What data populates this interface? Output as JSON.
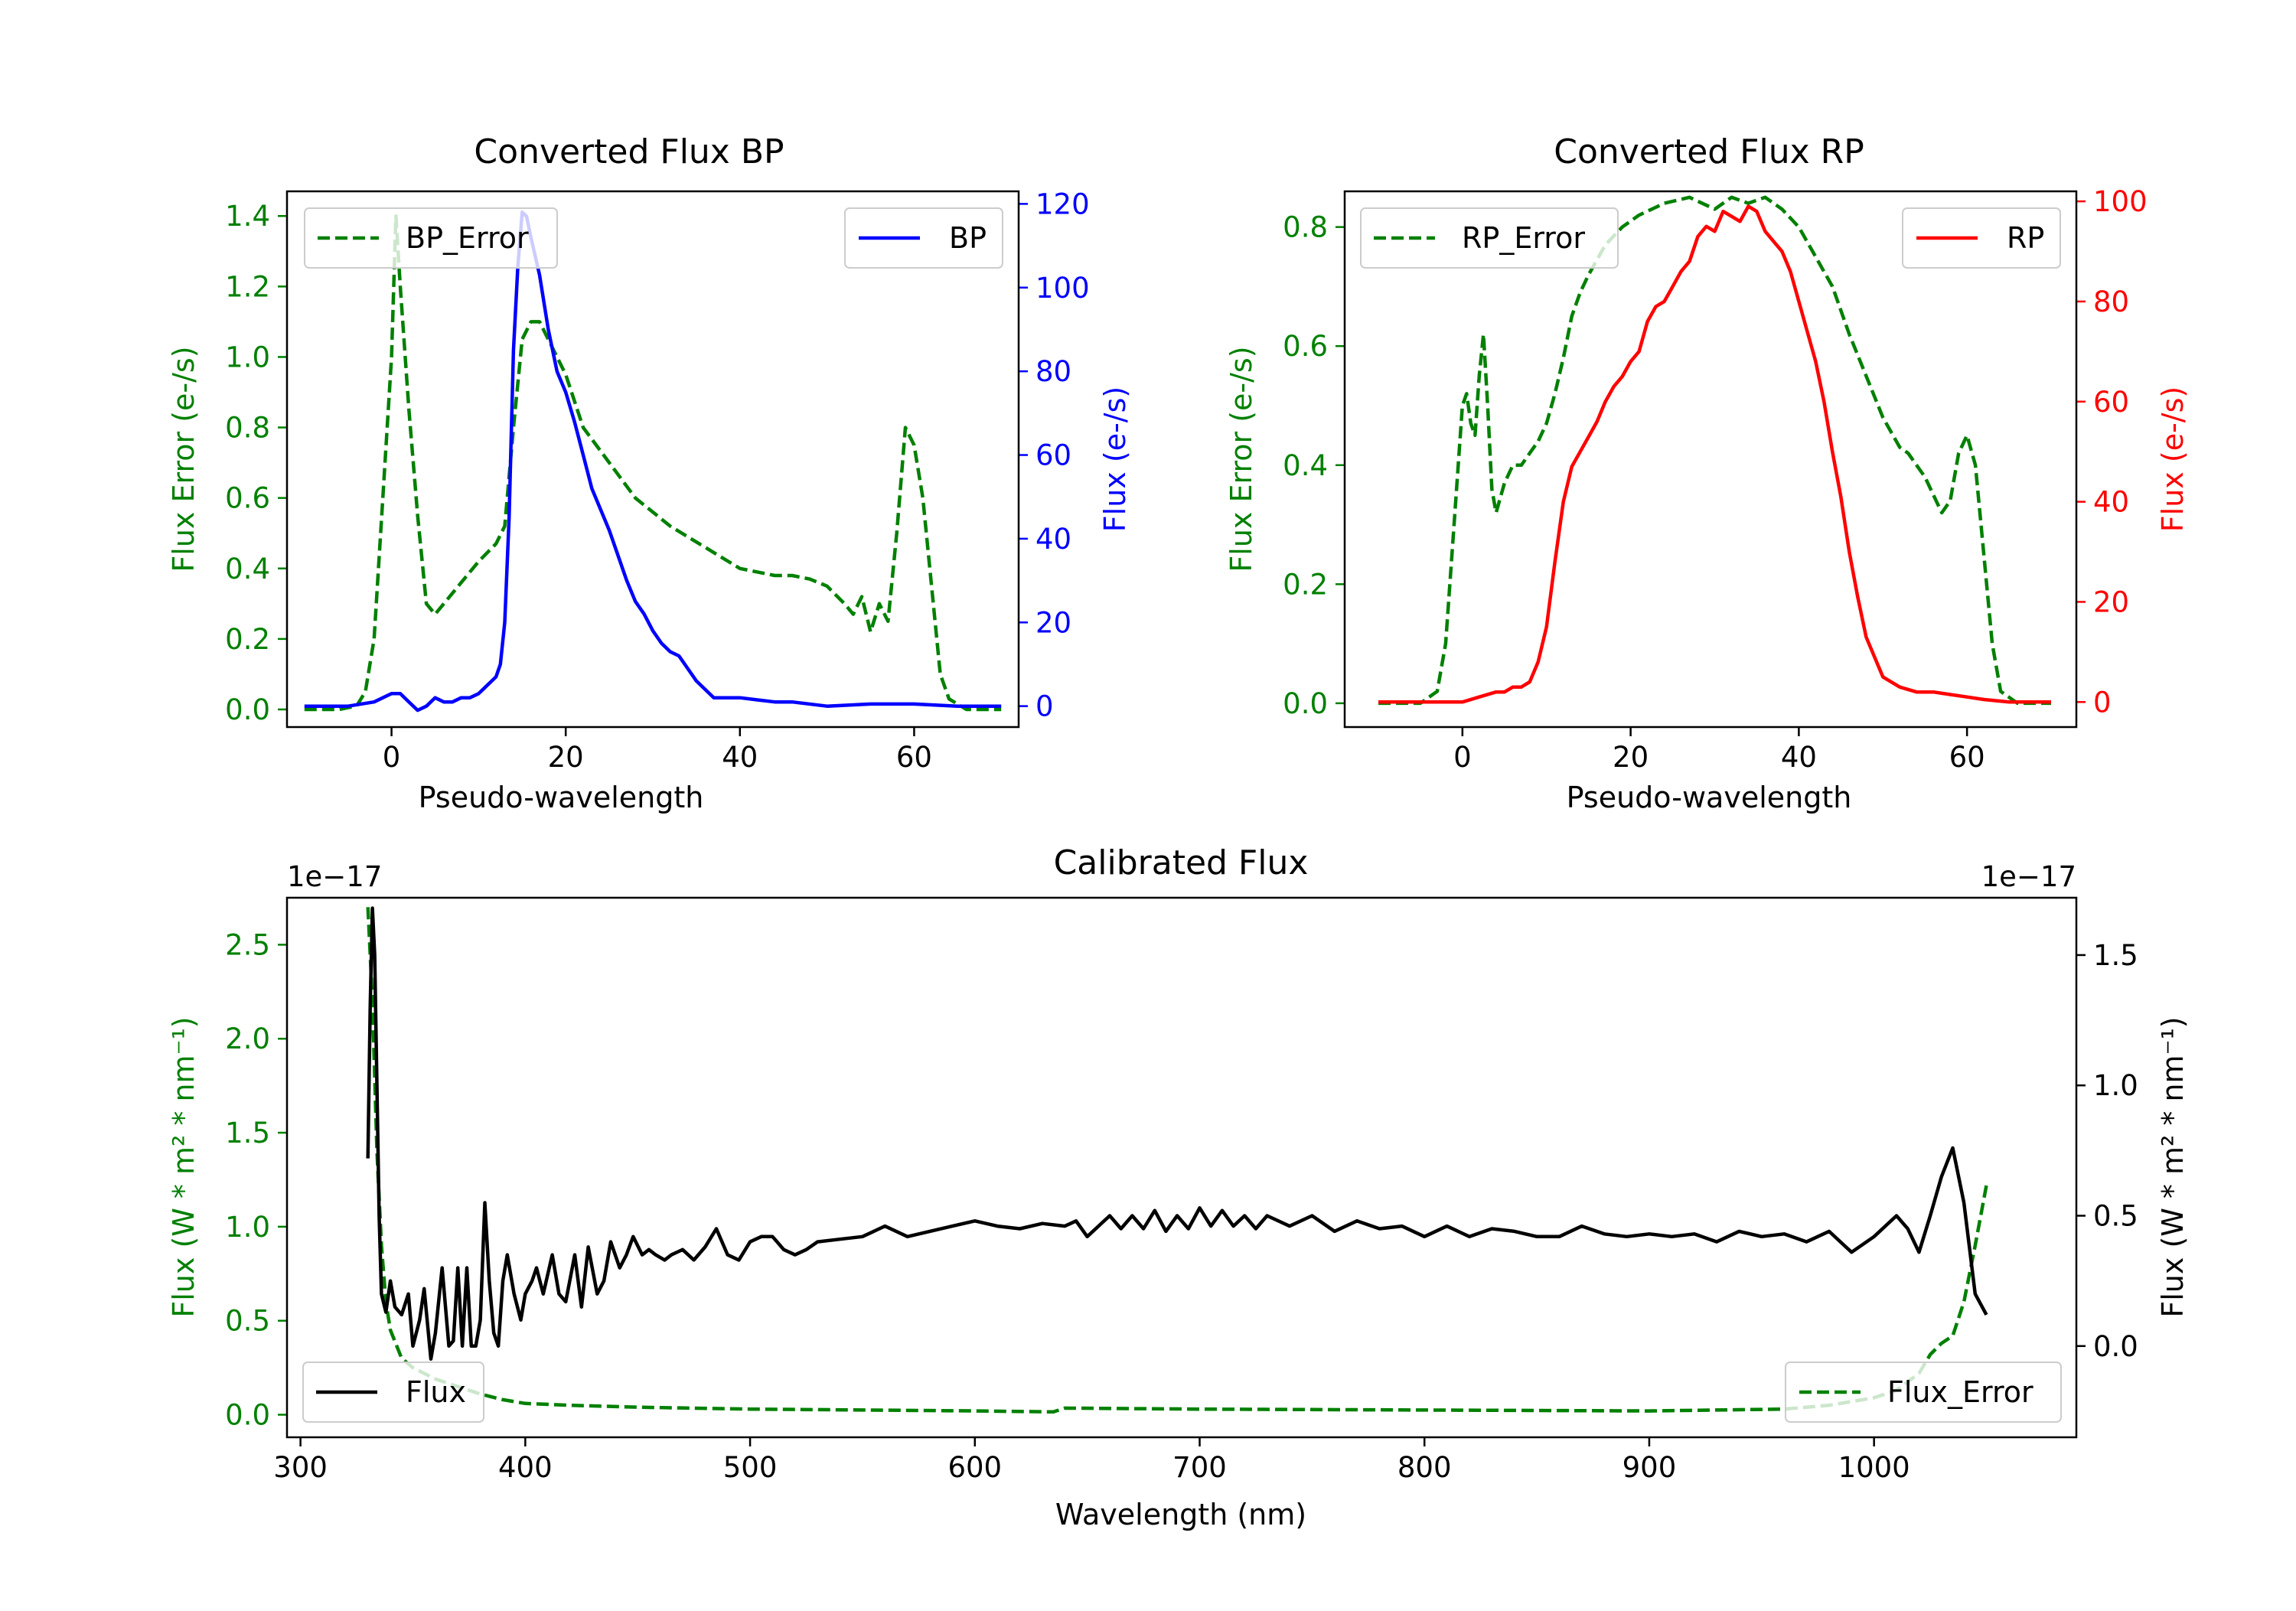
{
  "colors": {
    "green": "#008000",
    "blue": "#0000ff",
    "red": "#ff0000",
    "black": "#000000"
  },
  "chart_data": [
    {
      "type": "line",
      "title": "Converted Flux BP",
      "xlabel": "Pseudo-wavelength",
      "ylabel_left": "Flux Error (e-/s)",
      "ylabel_right": "Flux (e-/s)",
      "xlim": [
        -12,
        72
      ],
      "xticks": [
        "0",
        "20",
        "40",
        "60"
      ],
      "ylim_left": [
        -0.05,
        1.47
      ],
      "yticks_left": [
        "0.0",
        "0.2",
        "0.4",
        "0.6",
        "0.8",
        "1.0",
        "1.2",
        "1.4"
      ],
      "ylim_right": [
        -5,
        123
      ],
      "yticks_right": [
        "0",
        "20",
        "40",
        "60",
        "80",
        "100",
        "120"
      ],
      "legend_left": "BP_Error",
      "legend_right": "BP",
      "series": [
        {
          "name": "BP_Error",
          "axis": "left",
          "color": "#008000",
          "style": "dashed",
          "x": [
            -10,
            -6,
            -4,
            -3,
            -2,
            -1,
            0,
            0.5,
            1,
            2,
            3,
            4,
            5,
            6,
            8,
            10,
            12,
            13,
            14,
            15,
            16,
            17,
            18,
            20,
            22,
            25,
            28,
            32,
            36,
            40,
            44,
            46,
            48,
            50,
            52,
            53,
            54,
            55,
            56,
            57,
            58,
            59,
            60,
            61,
            62,
            63,
            64,
            66,
            70
          ],
          "y": [
            0.0,
            0.0,
            0.01,
            0.05,
            0.2,
            0.6,
            1.0,
            1.4,
            1.2,
            0.85,
            0.55,
            0.3,
            0.27,
            0.3,
            0.36,
            0.42,
            0.47,
            0.52,
            0.8,
            1.05,
            1.1,
            1.1,
            1.05,
            0.95,
            0.8,
            0.7,
            0.6,
            0.52,
            0.46,
            0.4,
            0.38,
            0.38,
            0.37,
            0.35,
            0.3,
            0.27,
            0.32,
            0.22,
            0.3,
            0.25,
            0.5,
            0.8,
            0.75,
            0.6,
            0.35,
            0.1,
            0.03,
            0.0,
            0.0
          ]
        },
        {
          "name": "BP",
          "axis": "right",
          "color": "#0000ff",
          "style": "solid",
          "x": [
            -10,
            -5,
            -2,
            0,
            1,
            2,
            3,
            4,
            5,
            6,
            7,
            8,
            9,
            10,
            11,
            12,
            12.5,
            13,
            13.5,
            14,
            14.5,
            15,
            15.5,
            16,
            17,
            18,
            19,
            20,
            21,
            22,
            23,
            24,
            25,
            26,
            27,
            28,
            29,
            30,
            31,
            32,
            33,
            34,
            35,
            36,
            37,
            38,
            40,
            42,
            44,
            46,
            50,
            55,
            60,
            65,
            70
          ],
          "y": [
            0,
            0,
            1,
            3,
            3,
            1,
            -1,
            0,
            2,
            1,
            1,
            2,
            2,
            3,
            5,
            7,
            10,
            20,
            45,
            85,
            105,
            118,
            117,
            112,
            103,
            90,
            80,
            75,
            68,
            60,
            52,
            47,
            42,
            36,
            30,
            25,
            22,
            18,
            15,
            13,
            12,
            9,
            6,
            4,
            2,
            2,
            2,
            1.5,
            1,
            1,
            0,
            0.5,
            0.5,
            0,
            0
          ]
        }
      ]
    },
    {
      "type": "line",
      "title": "Converted Flux RP",
      "xlabel": "Pseudo-wavelength",
      "ylabel_left": "Flux Error (e-/s)",
      "ylabel_right": "Flux (e-/s)",
      "xlim": [
        -14,
        73
      ],
      "xticks": [
        "0",
        "20",
        "40",
        "60"
      ],
      "ylim_left": [
        -0.04,
        0.86
      ],
      "yticks_left": [
        "0.0",
        "0.2",
        "0.4",
        "0.6",
        "0.8"
      ],
      "ylim_right": [
        -5,
        102
      ],
      "yticks_right": [
        "0",
        "20",
        "40",
        "60",
        "80",
        "100"
      ],
      "legend_left": "RP_Error",
      "legend_right": "RP",
      "series": [
        {
          "name": "RP_Error",
          "axis": "left",
          "color": "#008000",
          "style": "dashed",
          "x": [
            -10,
            -5,
            -3,
            -2,
            -1,
            0,
            0.5,
            1,
            1.5,
            2,
            2.5,
            3,
            3.5,
            4,
            5,
            6,
            7,
            8,
            9,
            10,
            11,
            12,
            13,
            14,
            15,
            17,
            19,
            21,
            24,
            27,
            30,
            32,
            34,
            36,
            38,
            40,
            42,
            44,
            46,
            48,
            50,
            52,
            53,
            54,
            55,
            56,
            57,
            58,
            59,
            60,
            61,
            62,
            63,
            64,
            66,
            70
          ],
          "y": [
            0.0,
            0.0,
            0.02,
            0.1,
            0.3,
            0.5,
            0.52,
            0.47,
            0.45,
            0.55,
            0.62,
            0.5,
            0.36,
            0.32,
            0.37,
            0.4,
            0.4,
            0.42,
            0.44,
            0.47,
            0.52,
            0.58,
            0.65,
            0.69,
            0.72,
            0.77,
            0.8,
            0.82,
            0.84,
            0.85,
            0.83,
            0.85,
            0.84,
            0.85,
            0.83,
            0.8,
            0.75,
            0.7,
            0.62,
            0.55,
            0.48,
            0.43,
            0.42,
            0.4,
            0.38,
            0.35,
            0.32,
            0.34,
            0.42,
            0.45,
            0.4,
            0.25,
            0.1,
            0.02,
            0.0,
            0.0
          ]
        },
        {
          "name": "RP",
          "axis": "right",
          "color": "#ff0000",
          "style": "solid",
          "x": [
            -10,
            -5,
            0,
            2,
            4,
            5,
            6,
            7,
            8,
            9,
            10,
            11,
            12,
            13,
            14,
            15,
            16,
            17,
            18,
            19,
            20,
            21,
            22,
            23,
            24,
            25,
            26,
            27,
            28,
            29,
            30,
            31,
            32,
            33,
            34,
            35,
            36,
            37,
            38,
            39,
            40,
            41,
            42,
            43,
            44,
            45,
            46,
            47,
            48,
            50,
            52,
            54,
            56,
            58,
            60,
            62,
            65,
            70
          ],
          "y": [
            0,
            0,
            0,
            1,
            2,
            2,
            3,
            3,
            4,
            8,
            15,
            28,
            40,
            47,
            50,
            53,
            56,
            60,
            63,
            65,
            68,
            70,
            76,
            79,
            80,
            83,
            86,
            88,
            93,
            95,
            94,
            98,
            97,
            96,
            99,
            98,
            94,
            92,
            90,
            86,
            80,
            74,
            68,
            60,
            50,
            41,
            30,
            21,
            13,
            5,
            3,
            2,
            2,
            1.5,
            1,
            0.5,
            0,
            0
          ]
        }
      ]
    },
    {
      "type": "line",
      "title": "Calibrated Flux",
      "xlabel": "Wavelength (nm)",
      "ylabel_left": "Flux (W * m² * nm⁻¹)",
      "ylabel_right": "Flux (W * m² * nm⁻¹)",
      "offset_left": "1e−17",
      "offset_right": "1e−17",
      "xlim": [
        294,
        1090
      ],
      "xticks": [
        "300",
        "400",
        "500",
        "600",
        "700",
        "800",
        "900",
        "1000"
      ],
      "ylim_left": [
        -0.12,
        2.75
      ],
      "yticks_left": [
        "0.0",
        "0.5",
        "1.0",
        "1.5",
        "2.0",
        "2.5"
      ],
      "ylim_right": [
        -0.35,
        1.72
      ],
      "yticks_right": [
        "0.0",
        "0.5",
        "1.0",
        "1.5"
      ],
      "legend_left": "Flux",
      "legend_right": "Flux_Error",
      "series": [
        {
          "name": "Flux_Error",
          "axis": "left",
          "color": "#008000",
          "style": "dashed",
          "x": [
            330,
            332,
            334,
            336,
            338,
            340,
            345,
            350,
            360,
            370,
            380,
            390,
            400,
            420,
            450,
            500,
            550,
            600,
            635,
            640,
            700,
            800,
            900,
            960,
            980,
            1000,
            1010,
            1020,
            1025,
            1030,
            1035,
            1040,
            1045,
            1050
          ],
          "y": [
            2.7,
            2.2,
            1.4,
            0.9,
            0.6,
            0.45,
            0.3,
            0.25,
            0.19,
            0.15,
            0.11,
            0.08,
            0.06,
            0.05,
            0.04,
            0.03,
            0.025,
            0.02,
            0.015,
            0.035,
            0.03,
            0.025,
            0.02,
            0.03,
            0.05,
            0.09,
            0.13,
            0.22,
            0.32,
            0.38,
            0.42,
            0.6,
            0.9,
            1.22
          ]
        },
        {
          "name": "Flux",
          "axis": "right",
          "color": "#000000",
          "style": "solid",
          "x": [
            330,
            331,
            332,
            333,
            334,
            335,
            336,
            338,
            340,
            342,
            345,
            348,
            350,
            353,
            355,
            358,
            360,
            363,
            366,
            368,
            370,
            372,
            374,
            376,
            378,
            380,
            382,
            384,
            386,
            388,
            390,
            392,
            395,
            398,
            400,
            403,
            405,
            408,
            412,
            415,
            418,
            422,
            425,
            428,
            432,
            435,
            438,
            442,
            445,
            448,
            452,
            455,
            458,
            462,
            465,
            470,
            475,
            480,
            485,
            490,
            495,
            500,
            505,
            510,
            515,
            520,
            525,
            530,
            540,
            550,
            560,
            570,
            580,
            590,
            600,
            610,
            620,
            630,
            640,
            645,
            650,
            655,
            660,
            665,
            670,
            675,
            680,
            685,
            690,
            695,
            700,
            705,
            710,
            715,
            720,
            725,
            730,
            740,
            750,
            760,
            770,
            780,
            790,
            800,
            810,
            820,
            830,
            840,
            850,
            860,
            870,
            880,
            890,
            900,
            910,
            920,
            930,
            940,
            950,
            960,
            970,
            980,
            990,
            1000,
            1010,
            1015,
            1020,
            1025,
            1030,
            1035,
            1040,
            1045,
            1050
          ],
          "y": [
            0.72,
            1.3,
            1.68,
            1.5,
            1.0,
            0.5,
            0.2,
            0.13,
            0.25,
            0.15,
            0.12,
            0.2,
            0.0,
            0.1,
            0.22,
            -0.05,
            0.05,
            0.3,
            0.0,
            0.02,
            0.3,
            0.0,
            0.3,
            0.0,
            0.0,
            0.1,
            0.55,
            0.25,
            0.05,
            0.0,
            0.25,
            0.35,
            0.2,
            0.1,
            0.2,
            0.25,
            0.3,
            0.2,
            0.35,
            0.2,
            0.17,
            0.35,
            0.15,
            0.38,
            0.2,
            0.25,
            0.4,
            0.3,
            0.35,
            0.42,
            0.35,
            0.37,
            0.35,
            0.33,
            0.35,
            0.37,
            0.33,
            0.38,
            0.45,
            0.35,
            0.33,
            0.4,
            0.42,
            0.42,
            0.37,
            0.35,
            0.37,
            0.4,
            0.41,
            0.42,
            0.46,
            0.42,
            0.44,
            0.46,
            0.48,
            0.46,
            0.45,
            0.47,
            0.46,
            0.48,
            0.42,
            0.46,
            0.5,
            0.45,
            0.5,
            0.45,
            0.52,
            0.44,
            0.5,
            0.45,
            0.53,
            0.46,
            0.52,
            0.46,
            0.5,
            0.45,
            0.5,
            0.46,
            0.5,
            0.44,
            0.48,
            0.45,
            0.46,
            0.42,
            0.46,
            0.42,
            0.45,
            0.44,
            0.42,
            0.42,
            0.46,
            0.43,
            0.42,
            0.43,
            0.42,
            0.43,
            0.4,
            0.44,
            0.42,
            0.43,
            0.4,
            0.44,
            0.36,
            0.42,
            0.5,
            0.45,
            0.36,
            0.5,
            0.65,
            0.76,
            0.55,
            0.2,
            0.12
          ]
        }
      ]
    }
  ]
}
